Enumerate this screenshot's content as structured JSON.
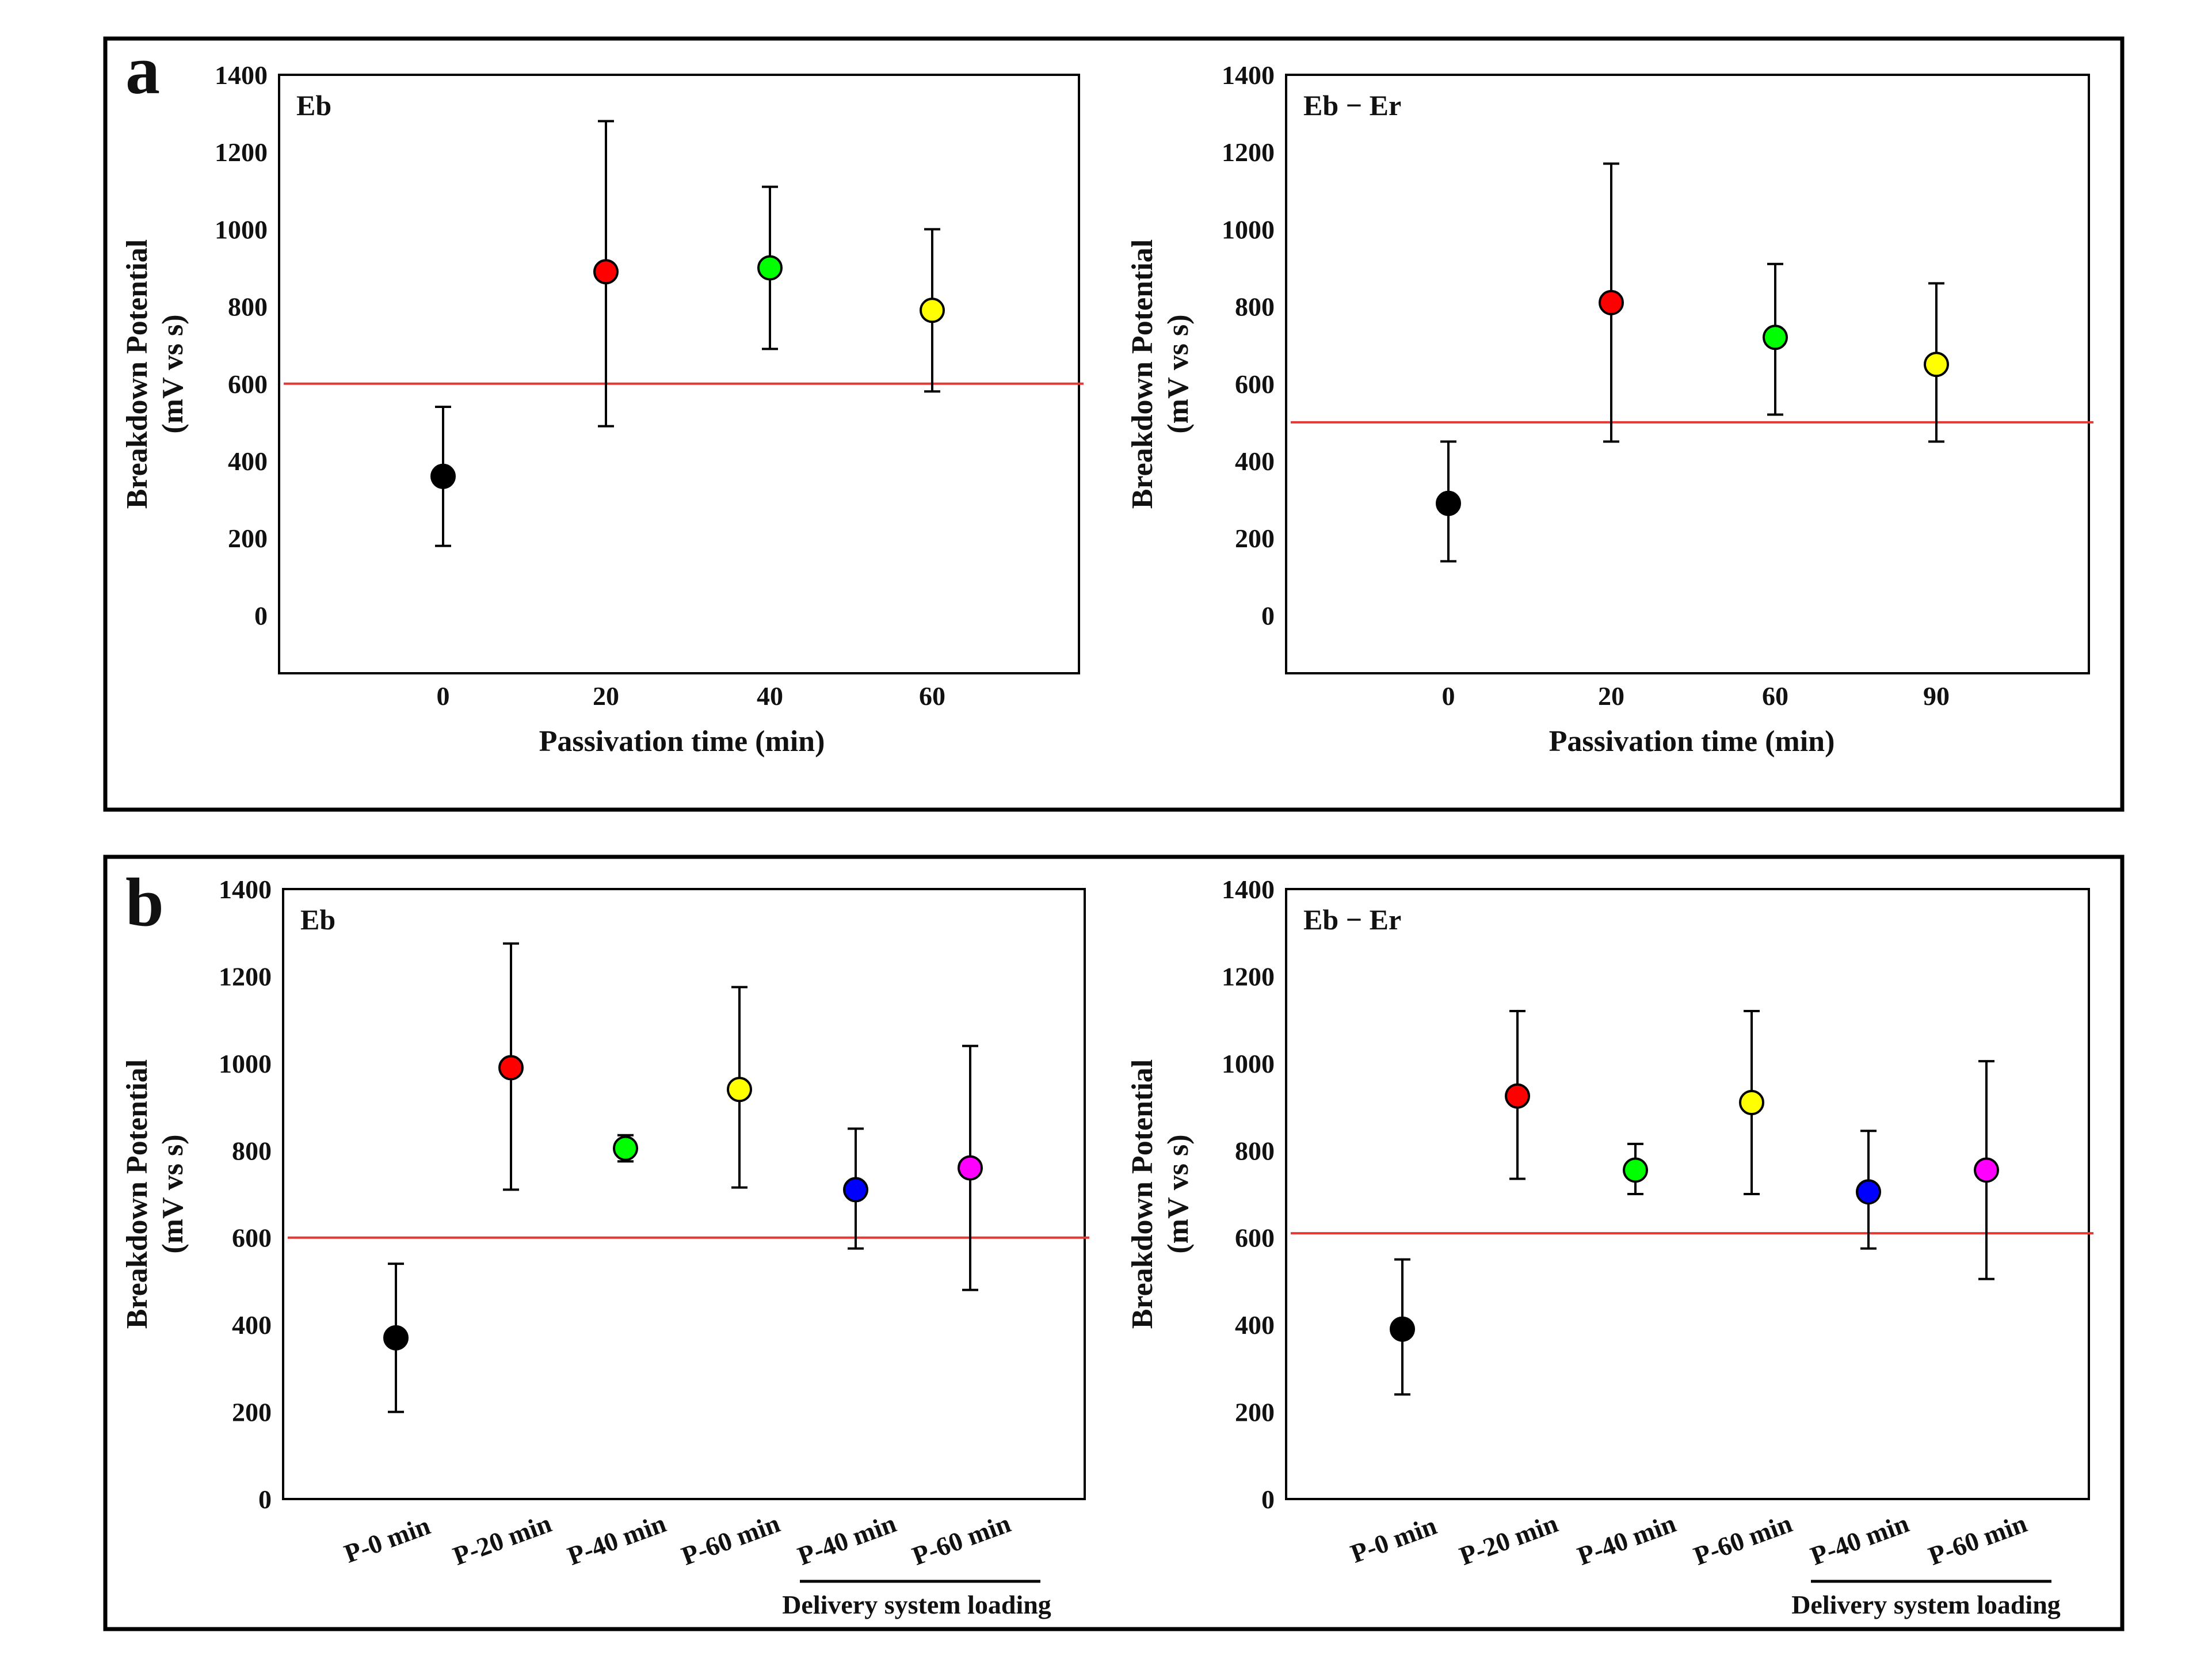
{
  "figure": {
    "panels": [
      {
        "letter": "a"
      },
      {
        "letter": "b"
      }
    ]
  },
  "chart_data": [
    {
      "type": "scatter",
      "panel": "a",
      "corner_label": "Eb",
      "xlabel": "Passivation time (min)",
      "ylabel": [
        "Breakdown Potential",
        "(mV vs s)"
      ],
      "ylim": [
        -150,
        1400
      ],
      "yticks": [
        0,
        200,
        400,
        600,
        800,
        1000,
        1200,
        1400
      ],
      "categories": [
        "0",
        "20",
        "40",
        "60"
      ],
      "values": [
        360,
        890,
        900,
        790
      ],
      "error_low": [
        180,
        490,
        690,
        580
      ],
      "error_high": [
        540,
        1280,
        1110,
        1000
      ],
      "point_colors": [
        "#000000",
        "#ff0000",
        "#00ff00",
        "#ffff00"
      ],
      "reference_line": 600,
      "reference_color": "#e53935",
      "grid": false
    },
    {
      "type": "scatter",
      "panel": "a",
      "corner_label": "Eb − Er",
      "xlabel": "Passivation time (min)",
      "ylabel": [
        "Breakdown Potential",
        "(mV vs s)"
      ],
      "ylim": [
        -150,
        1400
      ],
      "yticks": [
        0,
        200,
        400,
        600,
        800,
        1000,
        1200,
        1400
      ],
      "categories": [
        "0",
        "20",
        "60",
        "90"
      ],
      "values": [
        290,
        810,
        720,
        650
      ],
      "error_low": [
        140,
        450,
        520,
        450
      ],
      "error_high": [
        450,
        1170,
        910,
        860
      ],
      "point_colors": [
        "#000000",
        "#ff0000",
        "#00ff00",
        "#ffff00"
      ],
      "reference_line": 500,
      "reference_color": "#e53935",
      "grid": false
    },
    {
      "type": "scatter",
      "panel": "b",
      "corner_label": "Eb",
      "xlabel": "",
      "ylabel": [
        "Breakdown Potential",
        "(mV vs s)"
      ],
      "ylim": [
        0,
        1400
      ],
      "yticks": [
        0,
        200,
        400,
        600,
        800,
        1000,
        1200,
        1400
      ],
      "categories": [
        "P-0 min",
        "P-20 min",
        "P-40 min",
        "P-60 min",
        "P-40 min",
        "P-60 min"
      ],
      "values": [
        370,
        990,
        805,
        940,
        710,
        760
      ],
      "error_low": [
        200,
        710,
        775,
        715,
        575,
        480
      ],
      "error_high": [
        540,
        1275,
        835,
        1175,
        850,
        1040
      ],
      "point_colors": [
        "#000000",
        "#ff0000",
        "#00ff00",
        "#ffff00",
        "#0000ff",
        "#ff00ff"
      ],
      "reference_line": 600,
      "reference_color": "#e53935",
      "group_label": "Delivery system loading",
      "group_span": [
        4,
        5
      ],
      "grid": false
    },
    {
      "type": "scatter",
      "panel": "b",
      "corner_label": "Eb − Er",
      "xlabel": "",
      "ylabel": [
        "Breakdown Potential",
        "(mV vs s)"
      ],
      "ylim": [
        0,
        1400
      ],
      "yticks": [
        0,
        200,
        400,
        600,
        800,
        1000,
        1200,
        1400
      ],
      "categories": [
        "P-0 min",
        "P-20 min",
        "P-40 min",
        "P-60 min",
        "P-40 min",
        "P-60 min"
      ],
      "values": [
        390,
        925,
        755,
        910,
        705,
        755
      ],
      "error_low": [
        240,
        735,
        700,
        700,
        575,
        505
      ],
      "error_high": [
        550,
        1120,
        815,
        1120,
        845,
        1005
      ],
      "point_colors": [
        "#000000",
        "#ff0000",
        "#00ff00",
        "#ffff00",
        "#0000ff",
        "#ff00ff"
      ],
      "reference_line": 610,
      "reference_color": "#e53935",
      "group_label": "Delivery system loading",
      "group_span": [
        4,
        5
      ],
      "grid": false
    }
  ]
}
